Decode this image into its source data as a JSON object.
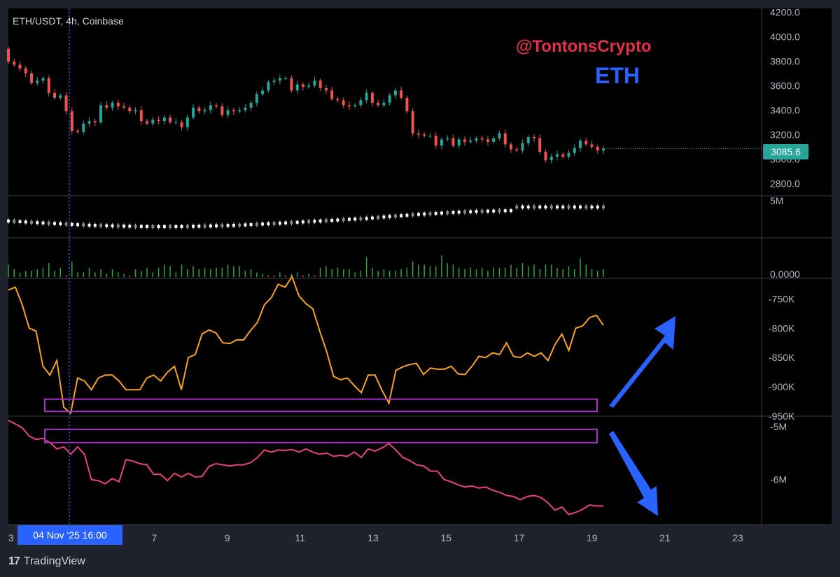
{
  "header": {
    "symbol_line": "ETH/USDT, 4h, Coinbase",
    "watermark": "@TontonsCrypto",
    "asset_label": "ETH",
    "price_badge": "3085.6",
    "crosshair_time": "04 Nov '25   16:00"
  },
  "footer": {
    "logo_text": "TradingView",
    "logo_glyph": "17"
  },
  "colors": {
    "bull": "#26a69a",
    "bear": "#ef5350",
    "orange": "#f7a21b",
    "pink": "#e8417b",
    "purple": "#a52fc8",
    "blue": "#2962ff",
    "grid": "#3a3e4a",
    "text": "#b2b5be"
  },
  "chart_data": [
    {
      "type": "candlestick",
      "title": "ETH/USDT, 4h, Coinbase",
      "ylim": [
        2700,
        4230
      ],
      "y_ticks": [
        "4200.0",
        "4000.0",
        "3800.0",
        "3600.0",
        "3400.0",
        "3200.0",
        "3000.0",
        "2800.0"
      ],
      "y_tick_values": [
        4200,
        4000,
        3800,
        3600,
        3400,
        3200,
        3000,
        2800
      ],
      "last_price": 3085.6,
      "close": [
        3795,
        3770,
        3740,
        3700,
        3620,
        3640,
        3660,
        3540,
        3500,
        3520,
        3390,
        3230,
        3220,
        3290,
        3310,
        3300,
        3440,
        3420,
        3460,
        3430,
        3420,
        3390,
        3400,
        3310,
        3290,
        3320,
        3310,
        3340,
        3300,
        3300,
        3260,
        3340,
        3420,
        3390,
        3400,
        3440,
        3430,
        3360,
        3400,
        3390,
        3400,
        3420,
        3460,
        3530,
        3560,
        3630,
        3640,
        3660,
        3660,
        3560,
        3610,
        3590,
        3600,
        3640,
        3580,
        3560,
        3490,
        3480,
        3440,
        3430,
        3440,
        3480,
        3540,
        3460,
        3440,
        3460,
        3520,
        3560,
        3500,
        3390,
        3210,
        3200,
        3190,
        3190,
        3110,
        3160,
        3170,
        3110,
        3160,
        3140,
        3150,
        3170,
        3160,
        3140,
        3170,
        3210,
        3120,
        3080,
        3070,
        3130,
        3180,
        3170,
        3060,
        2990,
        3020,
        3040,
        3020,
        3050,
        3090,
        3150,
        3120,
        3100,
        3070,
        3085
      ]
    },
    {
      "type": "volume-candles",
      "y_ticks": [
        "5M"
      ],
      "note": "secondary cumulative volume candle pane"
    },
    {
      "type": "histogram",
      "y_ticks": [
        "0.0000"
      ],
      "values": [
        0.8,
        0.5,
        0.3,
        0.4,
        0.4,
        0.5,
        0.6,
        0.9,
        0.4,
        0.6,
        0.1,
        1.0,
        0.3,
        0.3,
        0.6,
        0.3,
        0.5,
        0.2,
        0.5,
        0.3,
        0.2,
        0.1,
        0.5,
        0.4,
        0.6,
        0.3,
        0.6,
        0.8,
        0.7,
        0.3,
        0.8,
        0.5,
        0.7,
        0.5,
        0.6,
        0.5,
        0.6,
        0.6,
        0.8,
        0.7,
        0.7,
        0.4,
        0.5,
        0.3,
        0.2,
        0.1,
        0.1,
        0.3,
        0.1,
        0.2,
        0.3,
        0.1,
        0.2,
        0.1,
        0.6,
        0.7,
        0.5,
        0.6,
        0.5,
        0.5,
        0.3,
        0.4,
        1.3,
        0.6,
        0.4,
        0.5,
        0.4,
        0.4,
        0.5,
        0.6,
        1.0,
        0.8,
        0.8,
        0.7,
        0.7,
        1.4,
        0.9,
        0.8,
        0.6,
        0.5,
        0.6,
        0.5,
        0.6,
        0.4,
        0.6,
        0.6,
        0.6,
        0.8,
        0.6,
        0.9,
        0.7,
        0.8,
        0.5,
        0.8,
        0.8,
        0.6,
        0.5,
        0.7,
        0.5,
        1.2,
        0.8,
        0.5,
        0.4,
        0.5
      ]
    },
    {
      "type": "line",
      "ylim": [
        -950000,
        -715000
      ],
      "y_ticks": [
        "-750K",
        "-800K",
        "-850K",
        "-900K",
        "-950K"
      ],
      "y_tick_values": [
        -750000,
        -800000,
        -850000,
        -900000,
        -950000
      ],
      "values": [
        -735,
        -730,
        -760,
        -800,
        -805,
        -865,
        -880,
        -855,
        -935,
        -945,
        -885,
        -890,
        -905,
        -885,
        -880,
        -880,
        -890,
        -905,
        -905,
        -905,
        -885,
        -880,
        -890,
        -875,
        -865,
        -905,
        -850,
        -845,
        -810,
        -803,
        -808,
        -825,
        -826,
        -820,
        -820,
        -804,
        -790,
        -760,
        -748,
        -725,
        -730,
        -712,
        -745,
        -758,
        -767,
        -805,
        -840,
        -882,
        -888,
        -885,
        -898,
        -910,
        -880,
        -880,
        -906,
        -928,
        -872,
        -866,
        -862,
        -860,
        -879,
        -868,
        -870,
        -870,
        -865,
        -878,
        -879,
        -865,
        -848,
        -850,
        -842,
        -845,
        -825,
        -848,
        -850,
        -842,
        -848,
        -842,
        -855,
        -828,
        -810,
        -838,
        -800,
        -796,
        -782,
        -778,
        -795
      ],
      "highlight_box": {
        "from": -921000,
        "to": -942000
      }
    },
    {
      "type": "line",
      "ylim": [
        -6.85,
        -4.8
      ],
      "y_ticks": [
        "-5M",
        "-6M"
      ],
      "y_tick_values": [
        -5.0,
        -6.0
      ],
      "values": [
        -4.88,
        -4.95,
        -5.02,
        -5.18,
        -5.24,
        -5.22,
        -5.3,
        -5.42,
        -5.38,
        -5.52,
        -5.38,
        -5.52,
        -6.0,
        -6.02,
        -6.08,
        -5.98,
        -6.04,
        -5.62,
        -5.65,
        -5.7,
        -5.72,
        -5.9,
        -5.9,
        -6.02,
        -5.88,
        -5.95,
        -5.88,
        -5.95,
        -5.94,
        -5.75,
        -5.7,
        -5.72,
        -5.74,
        -5.72,
        -5.72,
        -5.68,
        -5.58,
        -5.44,
        -5.48,
        -5.44,
        -5.45,
        -5.43,
        -5.48,
        -5.42,
        -5.48,
        -5.52,
        -5.5,
        -5.56,
        -5.54,
        -5.56,
        -5.48,
        -5.58,
        -5.42,
        -5.46,
        -5.4,
        -5.32,
        -5.44,
        -5.58,
        -5.64,
        -5.72,
        -5.74,
        -5.84,
        -5.84,
        -6.0,
        -6.04,
        -6.1,
        -6.14,
        -6.12,
        -6.16,
        -6.14,
        -6.2,
        -6.24,
        -6.3,
        -6.32,
        -6.38,
        -6.32,
        -6.3,
        -6.34,
        -6.44,
        -6.58,
        -6.52,
        -6.66,
        -6.62,
        -6.56,
        -6.48,
        -6.5,
        -6.5
      ],
      "highlight_box": {
        "from": -5.05,
        "to": -5.3
      }
    }
  ],
  "x_axis": {
    "labels": [
      "3",
      "7",
      "9",
      "11",
      "13",
      "15",
      "17",
      "19",
      "21",
      "23"
    ],
    "days": [
      3,
      7,
      9,
      11,
      13,
      15,
      17,
      19,
      21,
      23
    ],
    "crosshair_day": 4.67
  }
}
